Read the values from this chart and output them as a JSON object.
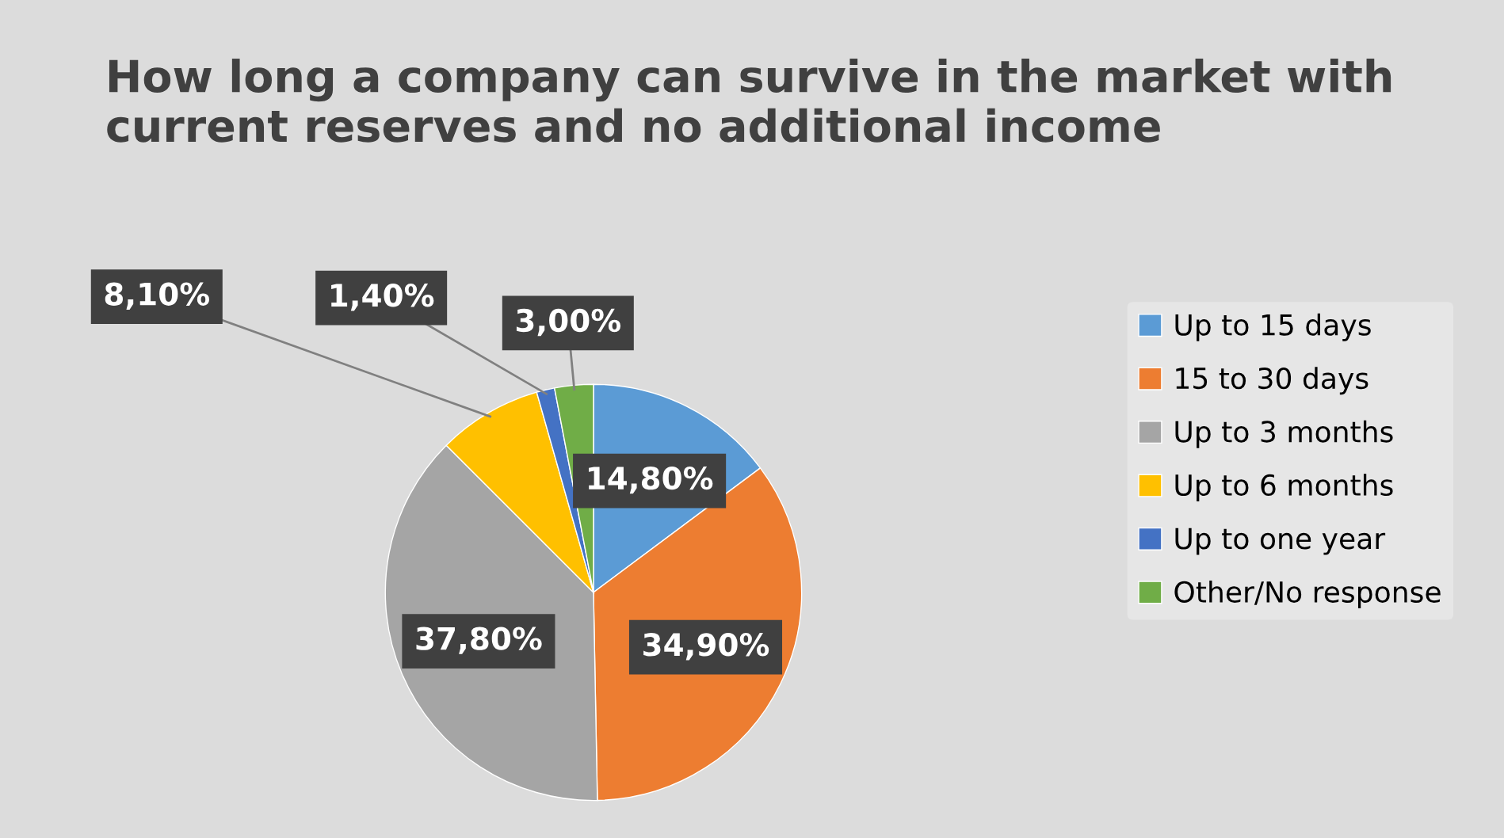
{
  "chart_data": {
    "type": "pie",
    "title": "How long a company can survive in the market with current reserves and no additional income",
    "categories": [
      "Up to 15 days",
      "15 to 30 days",
      "Up to 3 months",
      "Up to 6 months",
      "Up to one year",
      "Other/No response"
    ],
    "values": [
      14.8,
      34.9,
      37.8,
      8.1,
      1.4,
      3.0
    ],
    "value_labels": [
      "14,80%",
      "34,90%",
      "37,80%",
      "8,10%",
      "1,40%",
      "3,00%"
    ],
    "colors": [
      "#5b9bd5",
      "#ed7d31",
      "#a5a5a5",
      "#ffc000",
      "#4472c4",
      "#70ad47"
    ],
    "legend": "right"
  }
}
